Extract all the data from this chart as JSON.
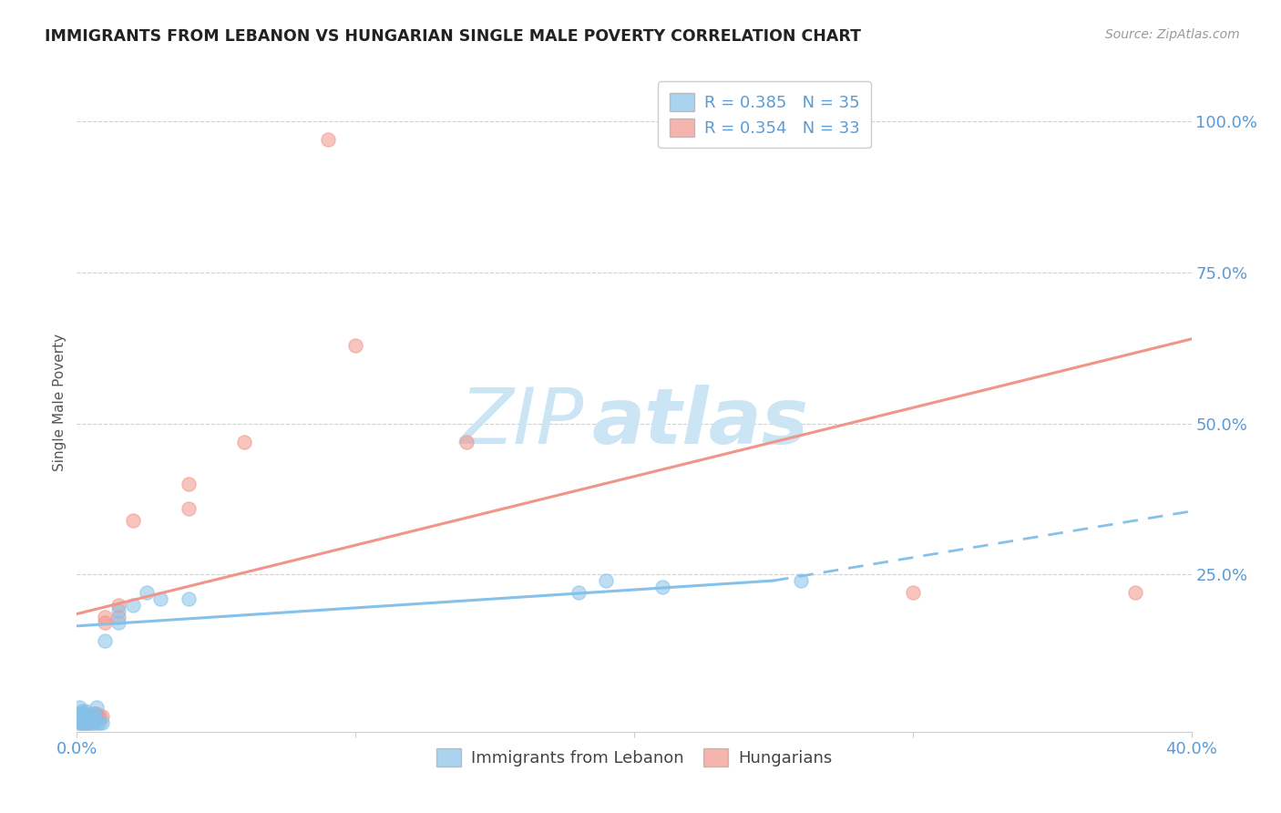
{
  "title": "IMMIGRANTS FROM LEBANON VS HUNGARIAN SINGLE MALE POVERTY CORRELATION CHART",
  "source": "Source: ZipAtlas.com",
  "ylabel": "Single Male Poverty",
  "ytick_labels": [
    "100.0%",
    "75.0%",
    "50.0%",
    "25.0%"
  ],
  "ytick_values": [
    1.0,
    0.75,
    0.5,
    0.25
  ],
  "xtick_labels": [
    "0.0%",
    "",
    "",
    "",
    "40.0%"
  ],
  "xtick_values": [
    0.0,
    0.1,
    0.2,
    0.3,
    0.4
  ],
  "xlim": [
    0.0,
    0.4
  ],
  "ylim": [
    -0.01,
    1.08
  ],
  "legend_entries": [
    {
      "label": "R = 0.385   N = 35",
      "color": "#85c1e9"
    },
    {
      "label": "R = 0.354   N = 33",
      "color": "#f1948a"
    }
  ],
  "blue_scatter": [
    [
      0.001,
      0.005
    ],
    [
      0.001,
      0.01
    ],
    [
      0.001,
      0.02
    ],
    [
      0.001,
      0.03
    ],
    [
      0.002,
      0.005
    ],
    [
      0.002,
      0.01
    ],
    [
      0.002,
      0.015
    ],
    [
      0.002,
      0.02
    ],
    [
      0.002,
      0.025
    ],
    [
      0.003,
      0.005
    ],
    [
      0.003,
      0.01
    ],
    [
      0.003,
      0.015
    ],
    [
      0.003,
      0.025
    ],
    [
      0.004,
      0.005
    ],
    [
      0.004,
      0.015
    ],
    [
      0.005,
      0.01
    ],
    [
      0.005,
      0.015
    ],
    [
      0.006,
      0.005
    ],
    [
      0.006,
      0.01
    ],
    [
      0.006,
      0.02
    ],
    [
      0.007,
      0.005
    ],
    [
      0.007,
      0.03
    ],
    [
      0.008,
      0.005
    ],
    [
      0.009,
      0.005
    ],
    [
      0.01,
      0.14
    ],
    [
      0.015,
      0.17
    ],
    [
      0.015,
      0.19
    ],
    [
      0.02,
      0.2
    ],
    [
      0.025,
      0.22
    ],
    [
      0.03,
      0.21
    ],
    [
      0.04,
      0.21
    ],
    [
      0.18,
      0.22
    ],
    [
      0.19,
      0.24
    ],
    [
      0.21,
      0.23
    ],
    [
      0.26,
      0.24
    ]
  ],
  "pink_scatter": [
    [
      0.001,
      0.005
    ],
    [
      0.001,
      0.01
    ],
    [
      0.001,
      0.015
    ],
    [
      0.002,
      0.005
    ],
    [
      0.002,
      0.01
    ],
    [
      0.002,
      0.015
    ],
    [
      0.002,
      0.02
    ],
    [
      0.003,
      0.005
    ],
    [
      0.003,
      0.015
    ],
    [
      0.003,
      0.02
    ],
    [
      0.004,
      0.005
    ],
    [
      0.004,
      0.01
    ],
    [
      0.005,
      0.005
    ],
    [
      0.005,
      0.01
    ],
    [
      0.006,
      0.015
    ],
    [
      0.006,
      0.02
    ],
    [
      0.007,
      0.015
    ],
    [
      0.007,
      0.02
    ],
    [
      0.008,
      0.015
    ],
    [
      0.009,
      0.015
    ],
    [
      0.01,
      0.17
    ],
    [
      0.01,
      0.18
    ],
    [
      0.015,
      0.18
    ],
    [
      0.015,
      0.2
    ],
    [
      0.02,
      0.34
    ],
    [
      0.04,
      0.36
    ],
    [
      0.04,
      0.4
    ],
    [
      0.06,
      0.47
    ],
    [
      0.09,
      0.97
    ],
    [
      0.1,
      0.63
    ],
    [
      0.14,
      0.47
    ],
    [
      0.3,
      0.22
    ],
    [
      0.38,
      0.22
    ]
  ],
  "blue_line_solid": {
    "x0": 0.0,
    "y0": 0.165,
    "x1": 0.25,
    "y1": 0.24
  },
  "blue_line_dashed": {
    "x0": 0.25,
    "y0": 0.24,
    "x1": 0.4,
    "y1": 0.355
  },
  "pink_line": {
    "x0": 0.0,
    "y0": 0.185,
    "x1": 0.4,
    "y1": 0.64
  },
  "blue_color": "#85c1e9",
  "pink_color": "#f1948a",
  "bg_color": "#ffffff",
  "grid_color": "#d0d0d0",
  "axis_color": "#cccccc",
  "title_color": "#222222",
  "right_label_color": "#5b9bd5",
  "bottom_label_color": "#5b9bd5",
  "watermark_zip": "ZIP",
  "watermark_atlas": "atlas",
  "watermark_color": "#cce5f5",
  "scatter_size": 120
}
